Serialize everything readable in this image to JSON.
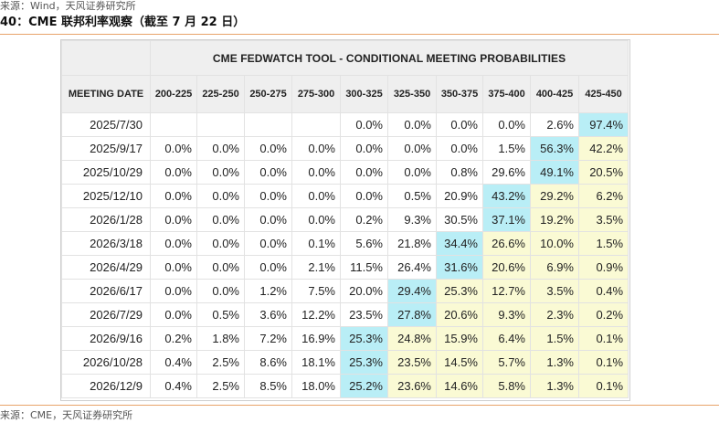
{
  "header": {
    "source_top": "来源：Wind，天风证券研究所",
    "figure_title": "40：CME 联邦利率观察（截至 7 月 22 日）"
  },
  "footer": {
    "source_bottom": "来源：CME，天风证券研究所"
  },
  "colors": {
    "max_cell": "#b9eef6",
    "above_max_cell": "#fafad4",
    "header_bg": "#efefef",
    "rule": "#e8a36a"
  },
  "chart_data": {
    "type": "table",
    "title": "CME FEDWATCH TOOL - CONDITIONAL MEETING PROBABILITIES",
    "row_header_label": "MEETING DATE",
    "columns": [
      "200-225",
      "225-250",
      "250-275",
      "275-300",
      "300-325",
      "325-350",
      "350-375",
      "375-400",
      "400-425",
      "425-450"
    ],
    "rows": [
      {
        "date": "2025/7/30",
        "values": [
          "",
          "",
          "",
          "",
          "0.0%",
          "0.0%",
          "0.0%",
          "0.0%",
          "2.6%",
          "97.4%"
        ]
      },
      {
        "date": "2025/9/17",
        "values": [
          "0.0%",
          "0.0%",
          "0.0%",
          "0.0%",
          "0.0%",
          "0.0%",
          "0.0%",
          "1.5%",
          "56.3%",
          "42.2%"
        ]
      },
      {
        "date": "2025/10/29",
        "values": [
          "0.0%",
          "0.0%",
          "0.0%",
          "0.0%",
          "0.0%",
          "0.0%",
          "0.8%",
          "29.6%",
          "49.1%",
          "20.5%"
        ]
      },
      {
        "date": "2025/12/10",
        "values": [
          "0.0%",
          "0.0%",
          "0.0%",
          "0.0%",
          "0.0%",
          "0.5%",
          "20.9%",
          "43.2%",
          "29.2%",
          "6.2%"
        ]
      },
      {
        "date": "2026/1/28",
        "values": [
          "0.0%",
          "0.0%",
          "0.0%",
          "0.0%",
          "0.2%",
          "9.3%",
          "30.5%",
          "37.1%",
          "19.2%",
          "3.5%"
        ]
      },
      {
        "date": "2026/3/18",
        "values": [
          "0.0%",
          "0.0%",
          "0.0%",
          "0.1%",
          "5.6%",
          "21.8%",
          "34.4%",
          "26.6%",
          "10.0%",
          "1.5%"
        ]
      },
      {
        "date": "2026/4/29",
        "values": [
          "0.0%",
          "0.0%",
          "0.0%",
          "2.1%",
          "11.5%",
          "26.4%",
          "31.6%",
          "20.6%",
          "6.9%",
          "0.9%"
        ]
      },
      {
        "date": "2026/6/17",
        "values": [
          "0.0%",
          "0.0%",
          "1.2%",
          "7.5%",
          "20.0%",
          "29.4%",
          "25.3%",
          "12.7%",
          "3.5%",
          "0.4%"
        ]
      },
      {
        "date": "2026/7/29",
        "values": [
          "0.0%",
          "0.5%",
          "3.6%",
          "12.2%",
          "23.5%",
          "27.8%",
          "20.6%",
          "9.3%",
          "2.3%",
          "0.2%"
        ]
      },
      {
        "date": "2026/9/16",
        "values": [
          "0.2%",
          "1.8%",
          "7.2%",
          "16.9%",
          "25.3%",
          "24.8%",
          "15.9%",
          "6.4%",
          "1.5%",
          "0.1%"
        ]
      },
      {
        "date": "2026/10/28",
        "values": [
          "0.4%",
          "2.5%",
          "8.6%",
          "18.1%",
          "25.3%",
          "23.5%",
          "14.5%",
          "5.7%",
          "1.3%",
          "0.1%"
        ]
      },
      {
        "date": "2026/12/9",
        "values": [
          "0.4%",
          "2.5%",
          "8.5%",
          "18.0%",
          "25.2%",
          "23.6%",
          "14.6%",
          "5.8%",
          "1.3%",
          "0.1%"
        ]
      }
    ],
    "highlight_col_index": [
      9,
      8,
      8,
      7,
      7,
      6,
      6,
      5,
      5,
      4,
      4,
      4
    ]
  }
}
